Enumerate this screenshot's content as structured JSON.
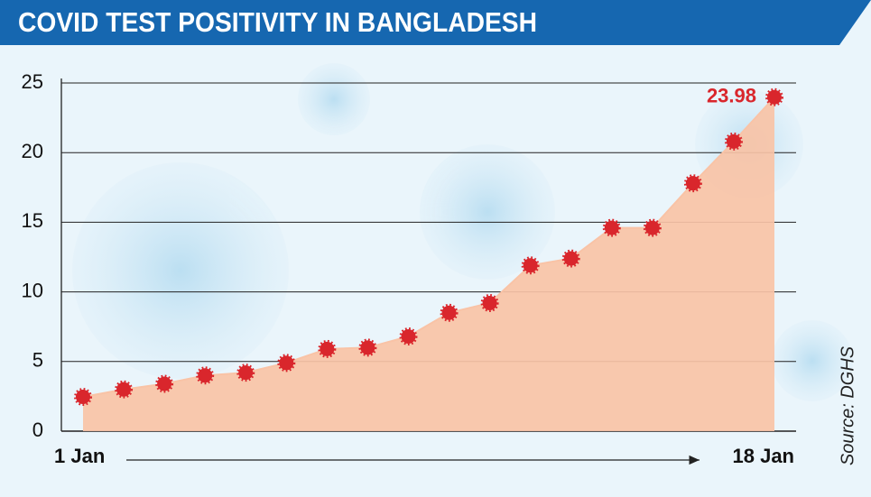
{
  "chart_data": {
    "type": "area",
    "title": "COVID TEST POSITIVITY IN BANGLADESH",
    "source": "Source: DGHS",
    "categories": [
      "1 Jan",
      null,
      null,
      null,
      null,
      null,
      null,
      null,
      null,
      null,
      null,
      null,
      null,
      null,
      null,
      null,
      null,
      "18 Jan"
    ],
    "values": [
      2.46,
      3.0,
      3.4,
      4.0,
      4.2,
      4.9,
      5.9,
      6.0,
      6.8,
      8.5,
      9.2,
      11.9,
      12.4,
      14.6,
      14.6,
      17.8,
      20.8,
      23.98
    ],
    "labeled_points": [
      17
    ],
    "color": "#f9c3a6",
    "marker_color": "#d9262c",
    "ylim": [
      0,
      25
    ],
    "yticks": [
      0,
      5,
      10,
      15,
      20,
      25
    ],
    "grid": true
  }
}
